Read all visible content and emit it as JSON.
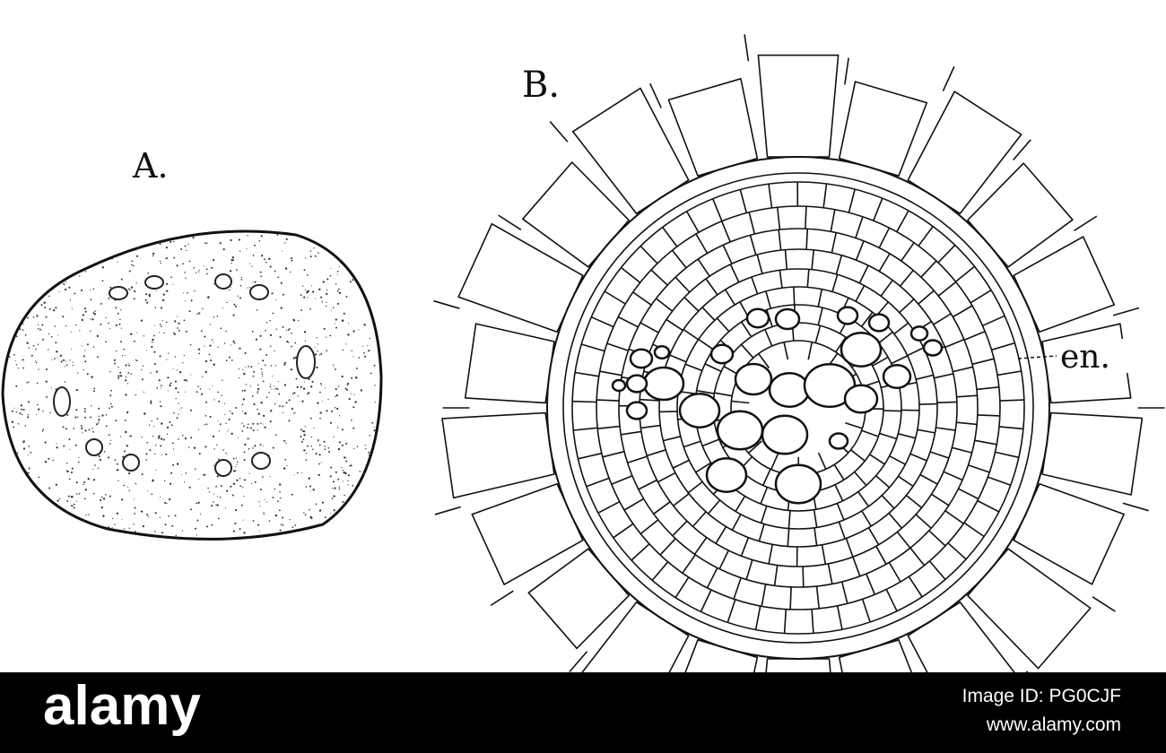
{
  "figure": {
    "label_a": "A.",
    "label_b": "B.",
    "label_en": "en."
  },
  "watermark": {
    "brand": "alamy",
    "image_id": "Image ID: PG0CJF",
    "url": "www.alamy.com"
  }
}
